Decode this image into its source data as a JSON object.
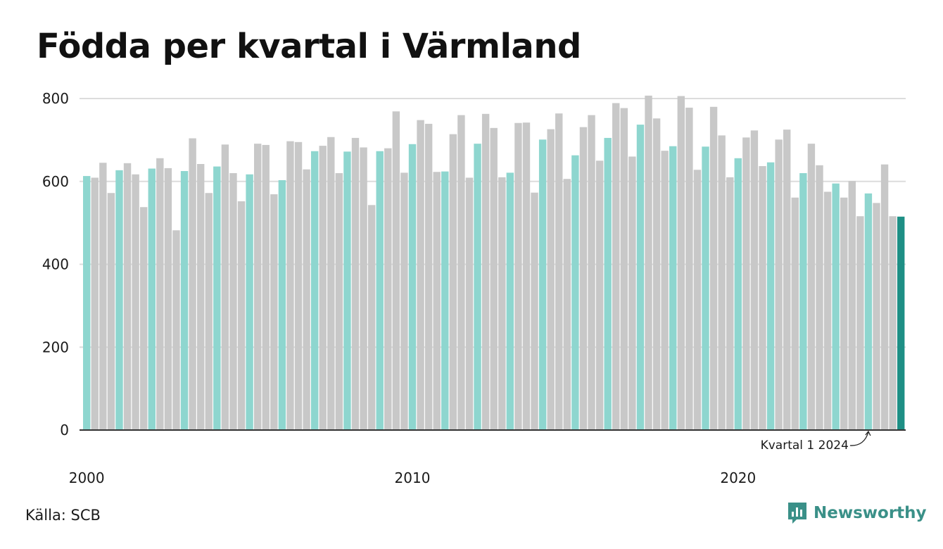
{
  "title": "Födda per kvartal i Värmland",
  "source": "Källa: SCB",
  "brand": {
    "name": "Newsworthy",
    "icon": "newsworthy-logo-icon"
  },
  "colors": {
    "highlight_quarter": "#8ed6cf",
    "other_quarter": "#c8c8c8",
    "latest": "#1e8f85",
    "grid": "#dcdcdc",
    "axis": "#333333"
  },
  "chart_data": {
    "type": "bar",
    "title": "Födda per kvartal i Värmland",
    "xlabel": "",
    "ylabel": "",
    "ylim": [
      0,
      800
    ],
    "yticks": [
      0,
      200,
      400,
      600,
      800
    ],
    "xticks": [
      {
        "label": "2000",
        "year": 2000
      },
      {
        "label": "2010",
        "year": 2010
      },
      {
        "label": "2020",
        "year": 2020
      }
    ],
    "grid": true,
    "legend": "none",
    "start": {
      "year": 2000,
      "quarter": 1
    },
    "highlight_quarter": 1,
    "values": [
      613,
      609,
      645,
      572,
      627,
      644,
      617,
      538,
      631,
      656,
      632,
      482,
      625,
      704,
      642,
      572,
      636,
      689,
      620,
      552,
      617,
      691,
      688,
      569,
      603,
      697,
      695,
      629,
      673,
      686,
      707,
      620,
      672,
      705,
      682,
      543,
      673,
      680,
      769,
      621,
      690,
      748,
      739,
      623,
      624,
      714,
      760,
      609,
      691,
      763,
      729,
      610,
      621,
      741,
      742,
      573,
      701,
      726,
      764,
      606,
      663,
      731,
      760,
      650,
      705,
      789,
      777,
      660,
      737,
      807,
      752,
      674,
      685,
      806,
      778,
      628,
      684,
      780,
      711,
      610,
      656,
      706,
      723,
      637,
      646,
      701,
      725,
      561,
      620,
      691,
      639,
      575,
      595,
      561,
      601,
      516,
      571,
      548,
      641,
      516,
      515
    ],
    "annotation": {
      "label": "Kvartal 1 2024",
      "target": "2024 Q1"
    }
  }
}
